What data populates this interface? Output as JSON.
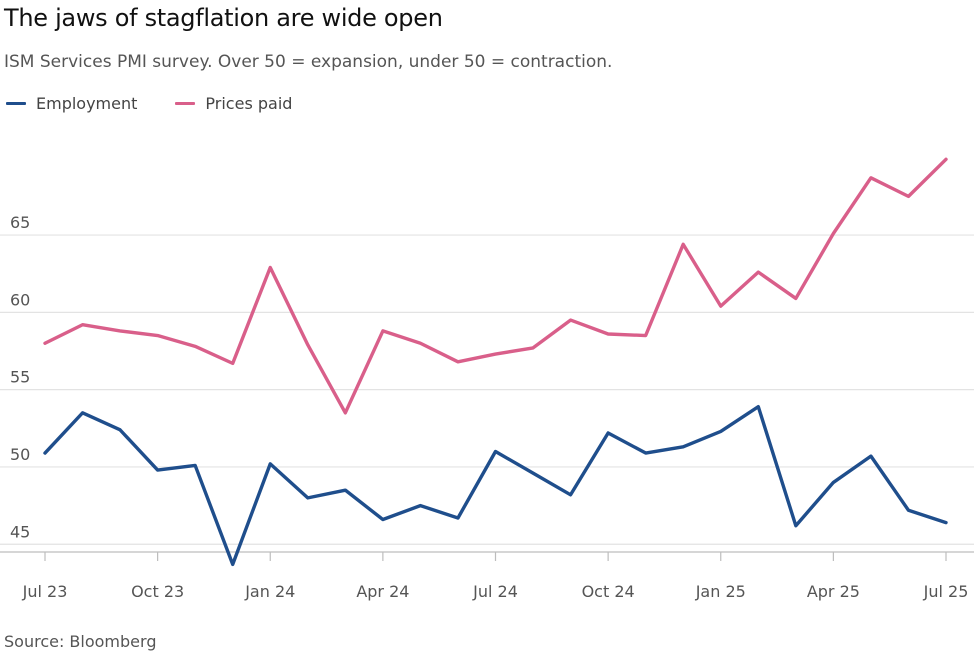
{
  "chart_data": {
    "type": "line",
    "title": "The jaws of stagflation are wide open",
    "subtitle": "ISM Services PMI survey. Over 50 = expansion, under 50 = contraction.",
    "source": "Source: Bloomberg",
    "x": [
      "Jul 23",
      "Aug 23",
      "Sep 23",
      "Oct 23",
      "Nov 23",
      "Dec 23",
      "Jan 24",
      "Feb 24",
      "Mar 24",
      "Apr 24",
      "May 24",
      "Jun 24",
      "Jul 24",
      "Aug 24",
      "Sep 24",
      "Oct 24",
      "Nov 24",
      "Dec 24",
      "Jan 25",
      "Feb 25",
      "Mar 25",
      "Apr 25",
      "May 25",
      "Jun 25",
      "Jul 25"
    ],
    "x_tick_labels": [
      "Jul 23",
      "Oct 23",
      "Jan 24",
      "Apr 24",
      "Jul 24",
      "Oct 24",
      "Jan 25",
      "Apr 25",
      "Jul 25"
    ],
    "x_tick_indices": [
      0,
      3,
      6,
      9,
      12,
      15,
      18,
      21,
      24
    ],
    "y_ticks": [
      45,
      50,
      55,
      60,
      65
    ],
    "ylim": [
      44.5,
      70.5
    ],
    "grid": true,
    "legend_position": "top-left",
    "series": [
      {
        "name": "Employment",
        "color": "#1f4e8c",
        "values": [
          50.9,
          53.5,
          52.4,
          49.8,
          50.1,
          43.7,
          50.2,
          48.0,
          48.5,
          46.6,
          47.5,
          46.7,
          51.0,
          49.6,
          48.2,
          52.2,
          50.9,
          51.3,
          52.3,
          53.9,
          46.2,
          49.0,
          50.7,
          47.2,
          46.4
        ]
      },
      {
        "name": "Prices paid",
        "color": "#d95f8a",
        "values": [
          58.0,
          59.2,
          58.8,
          58.5,
          57.8,
          56.7,
          62.9,
          57.9,
          53.5,
          58.8,
          58.0,
          56.8,
          57.3,
          57.7,
          59.5,
          58.6,
          58.5,
          64.4,
          60.4,
          62.6,
          60.9,
          65.1,
          68.7,
          67.5,
          69.9
        ]
      }
    ]
  }
}
